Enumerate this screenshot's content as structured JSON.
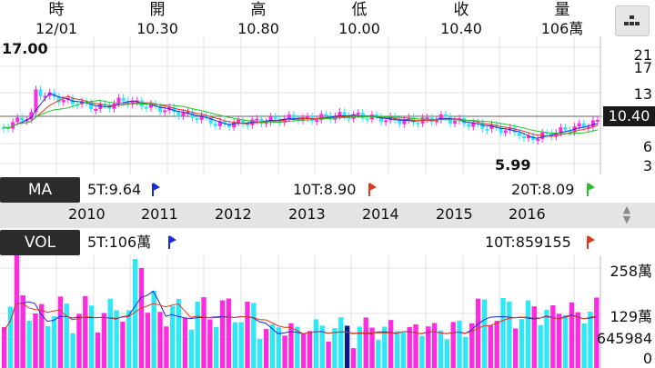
{
  "header": {
    "columns": [
      {
        "label": "時",
        "value": "12/01"
      },
      {
        "label": "開",
        "value": "10.30"
      },
      {
        "label": "高",
        "value": "10.80"
      },
      {
        "label": "低",
        "value": "10.00"
      },
      {
        "label": "收",
        "value": "10.40"
      },
      {
        "label": "量",
        "value": "106萬"
      }
    ],
    "menu_icon": "menu-dots-icon"
  },
  "price_chart": {
    "y_ticks": [
      "21",
      "17",
      "13",
      "6",
      "3"
    ],
    "current_price": "10.40",
    "high_label": "17.00",
    "low_label": "5.99"
  },
  "ma": {
    "tag": "MA",
    "ma5": "5T:9.64",
    "ma10": "10T:8.90",
    "ma20": "20T:8.09",
    "colors": {
      "ma5": "#1a2bd8",
      "ma10": "#e03a1e",
      "ma20": "#29c229"
    }
  },
  "years": [
    "2010",
    "2011",
    "2012",
    "2013",
    "2014",
    "2015",
    "2016"
  ],
  "vol": {
    "tag": "VOL",
    "v5": "5T:106萬",
    "v10": "10T:859155",
    "y_ticks": [
      "258萬",
      "129萬",
      "645984",
      "0"
    ]
  },
  "colors": {
    "up": "#ff2be0",
    "down": "#2ee8f5",
    "special": "#0a1a8c"
  }
}
